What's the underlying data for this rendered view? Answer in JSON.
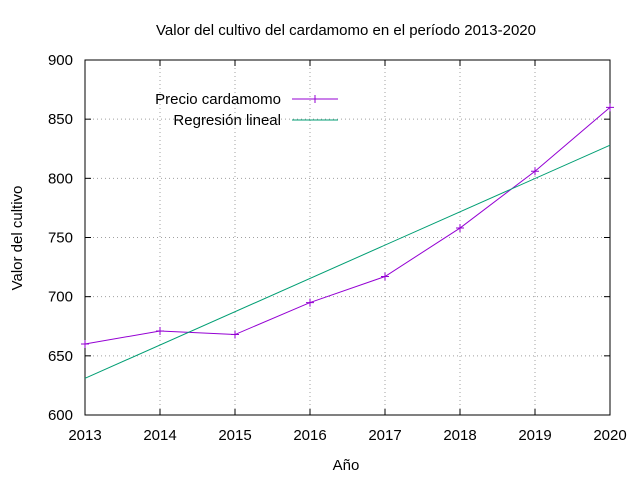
{
  "chart_data": {
    "type": "line",
    "title": "Valor del cultivo del cardamomo en el período 2013-2020",
    "xlabel": "Año",
    "ylabel": "Valor del cultivo",
    "xlim": [
      2013,
      2020
    ],
    "ylim": [
      600,
      900
    ],
    "x_ticks": [
      2013,
      2014,
      2015,
      2016,
      2017,
      2018,
      2019,
      2020
    ],
    "y_ticks": [
      600,
      650,
      700,
      750,
      800,
      850,
      900
    ],
    "grid": true,
    "legend_position": "top-left",
    "series": [
      {
        "name": "Precio cardamomo",
        "color": "#9400d3",
        "marker": "plus",
        "x": [
          2013,
          2014,
          2015,
          2016,
          2017,
          2018,
          2019,
          2020
        ],
        "y": [
          660,
          671,
          668,
          695,
          717,
          758,
          806,
          860
        ]
      },
      {
        "name": "Regresión lineal",
        "color": "#009e73",
        "marker": "none",
        "x": [
          2013,
          2020
        ],
        "y": [
          631,
          828
        ]
      }
    ]
  }
}
